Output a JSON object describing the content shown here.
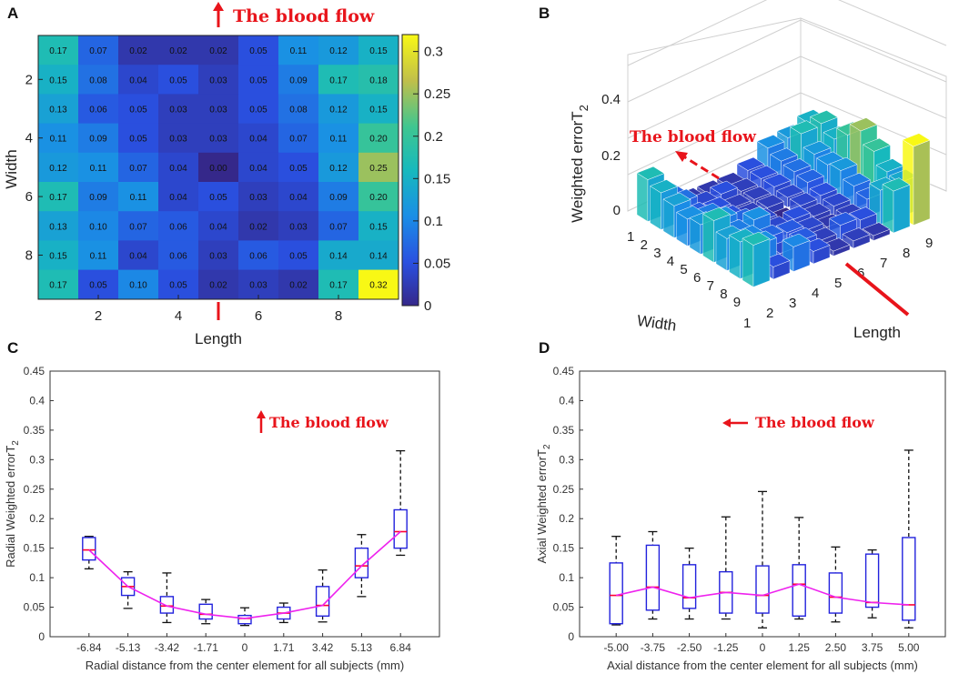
{
  "colors": {
    "accent": "#e8141b",
    "box": "#2222dd",
    "median": "#ff0033",
    "trend": "#ee22ee"
  },
  "chart_data": [
    {
      "panel": "A",
      "type": "heatmap",
      "flow_label": "The blood flow",
      "xlabel": "Length",
      "ylabel": "Width",
      "xticks": [
        "2",
        "4",
        "6",
        "8"
      ],
      "yticks": [
        "2",
        "4",
        "6",
        "8"
      ],
      "colorbar_ticks": [
        "0.3",
        "0.25",
        "0.2",
        "0.15",
        "0.1",
        "0.05",
        "0"
      ],
      "colorbar_range": [
        0,
        0.32
      ],
      "cells": [
        [
          "0.17",
          "0.07",
          "0.02",
          "0.02",
          "0.02",
          "0.05",
          "0.11",
          "0.12",
          "0.15"
        ],
        [
          "0.15",
          "0.08",
          "0.04",
          "0.05",
          "0.03",
          "0.05",
          "0.09",
          "0.17",
          "0.18"
        ],
        [
          "0.13",
          "0.06",
          "0.05",
          "0.03",
          "0.03",
          "0.05",
          "0.08",
          "0.12",
          "0.15"
        ],
        [
          "0.11",
          "0.09",
          "0.05",
          "0.03",
          "0.03",
          "0.04",
          "0.07",
          "0.11",
          "0.20"
        ],
        [
          "0.12",
          "0.11",
          "0.07",
          "0.04",
          "0.00",
          "0.04",
          "0.05",
          "0.12",
          "0.25"
        ],
        [
          "0.17",
          "0.09",
          "0.11",
          "0.04",
          "0.05",
          "0.03",
          "0.04",
          "0.09",
          "0.20"
        ],
        [
          "0.13",
          "0.10",
          "0.07",
          "0.06",
          "0.04",
          "0.02",
          "0.03",
          "0.07",
          "0.15"
        ],
        [
          "0.15",
          "0.11",
          "0.04",
          "0.06",
          "0.03",
          "0.06",
          "0.05",
          "0.14",
          "0.14"
        ],
        [
          "0.17",
          "0.05",
          "0.10",
          "0.05",
          "0.02",
          "0.03",
          "0.02",
          "0.17",
          "0.32"
        ]
      ]
    },
    {
      "panel": "B",
      "type": "bar3d",
      "flow_label": "The blood flow",
      "zlabel": "Weighted errorT",
      "zlabel_sub": "2",
      "xlabel": "Length",
      "ylabel": "Width",
      "zticks": [
        "0.4",
        "0.2",
        "0"
      ],
      "width_ticks": [
        "1",
        "2",
        "3",
        "4",
        "5",
        "6",
        "7",
        "8",
        "9"
      ],
      "length_ticks": [
        "1",
        "2",
        "3",
        "4",
        "5",
        "6",
        "7",
        "8",
        "9"
      ]
    },
    {
      "panel": "C",
      "type": "box",
      "flow_label": "The blood flow",
      "xlabel": "Radial distance from the center element for all subjects (mm)",
      "ylabel": "Radial Weighted errorT",
      "ylabel_sub": "2",
      "ylim": [
        0,
        0.45
      ],
      "yticks": [
        "0",
        "0.05",
        "0.1",
        "0.15",
        "0.2",
        "0.25",
        "0.3",
        "0.35",
        "0.4",
        "0.45"
      ],
      "categories": [
        "-6.84",
        "-5.13",
        "-3.42",
        "-1.71",
        "0",
        "1.71",
        "3.42",
        "5.13",
        "6.84"
      ],
      "boxes": [
        {
          "min": 0.115,
          "q1": 0.13,
          "median": 0.147,
          "q3": 0.168,
          "max": 0.17
        },
        {
          "min": 0.048,
          "q1": 0.07,
          "median": 0.085,
          "q3": 0.1,
          "max": 0.11
        },
        {
          "min": 0.024,
          "q1": 0.04,
          "median": 0.052,
          "q3": 0.068,
          "max": 0.108
        },
        {
          "min": 0.022,
          "q1": 0.03,
          "median": 0.038,
          "q3": 0.055,
          "max": 0.063
        },
        {
          "min": 0.019,
          "q1": 0.022,
          "median": 0.031,
          "q3": 0.036,
          "max": 0.049
        },
        {
          "min": 0.024,
          "q1": 0.03,
          "median": 0.04,
          "q3": 0.05,
          "max": 0.057
        },
        {
          "min": 0.025,
          "q1": 0.035,
          "median": 0.053,
          "q3": 0.085,
          "max": 0.113
        },
        {
          "min": 0.068,
          "q1": 0.1,
          "median": 0.12,
          "q3": 0.15,
          "max": 0.173
        },
        {
          "min": 0.138,
          "q1": 0.15,
          "median": 0.178,
          "q3": 0.215,
          "max": 0.315
        }
      ]
    },
    {
      "panel": "D",
      "type": "box",
      "flow_label": "The blood flow",
      "xlabel": "Axial distance from the center element for all subjects (mm)",
      "ylabel": "Axial Weighted errorT",
      "ylabel_sub": "2",
      "ylim": [
        0,
        0.45
      ],
      "yticks": [
        "0",
        "0.05",
        "0.1",
        "0.15",
        "0.2",
        "0.25",
        "0.3",
        "0.35",
        "0.4",
        "0.45"
      ],
      "categories": [
        "-5.00",
        "-3.75",
        "-2.50",
        "-1.25",
        "0",
        "1.25",
        "2.50",
        "3.75",
        "5.00"
      ],
      "boxes": [
        {
          "min": 0.02,
          "q1": 0.022,
          "median": 0.07,
          "q3": 0.125,
          "max": 0.17
        },
        {
          "min": 0.03,
          "q1": 0.045,
          "median": 0.084,
          "q3": 0.155,
          "max": 0.178
        },
        {
          "min": 0.03,
          "q1": 0.048,
          "median": 0.066,
          "q3": 0.122,
          "max": 0.15
        },
        {
          "min": 0.03,
          "q1": 0.04,
          "median": 0.075,
          "q3": 0.11,
          "max": 0.203
        },
        {
          "min": 0.015,
          "q1": 0.04,
          "median": 0.07,
          "q3": 0.12,
          "max": 0.246
        },
        {
          "min": 0.03,
          "q1": 0.035,
          "median": 0.089,
          "q3": 0.122,
          "max": 0.202
        },
        {
          "min": 0.025,
          "q1": 0.04,
          "median": 0.067,
          "q3": 0.108,
          "max": 0.152
        },
        {
          "min": 0.032,
          "q1": 0.05,
          "median": 0.058,
          "q3": 0.14,
          "max": 0.147
        },
        {
          "min": 0.015,
          "q1": 0.028,
          "median": 0.054,
          "q3": 0.168,
          "max": 0.316
        }
      ]
    }
  ]
}
